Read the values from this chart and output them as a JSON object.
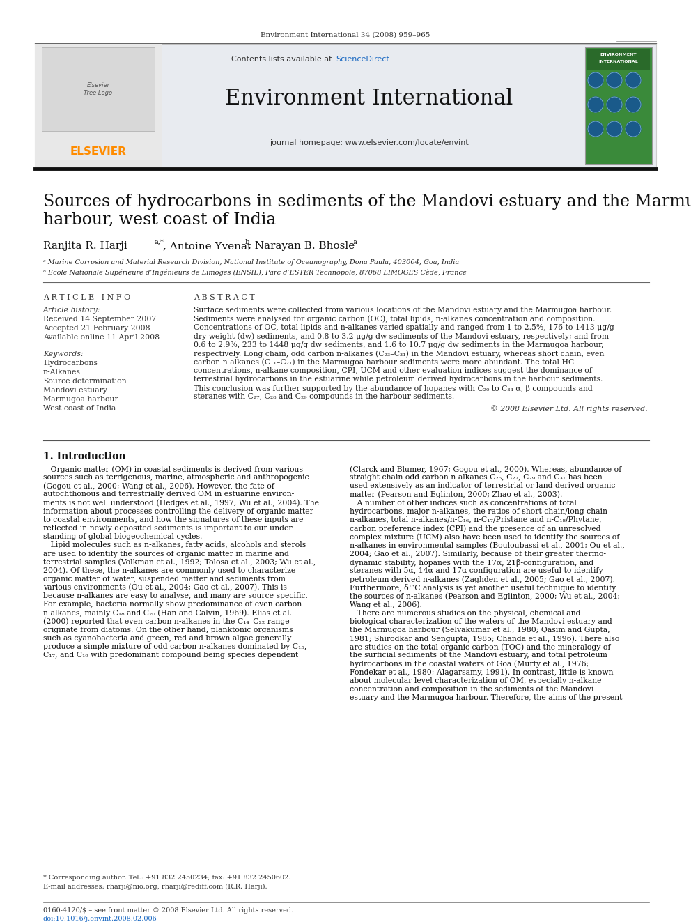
{
  "journal_ref": "Environment International 34 (2008) 959–965",
  "header_contents": "Contents lists available at ScienceDirect",
  "journal_name": "Environment International",
  "journal_homepage": "journal homepage: www.elsevier.com/locate/envint",
  "title_line1": "Sources of hydrocarbons in sediments of the Mandovi estuary and the Marmugoa",
  "title_line2": "harbour, west coast of India",
  "author_main": "Ranjita R. Harji",
  "author_sup1": "a,*",
  "author2": ", Antoine Yvenat",
  "author_sup2": " b",
  "author3": ", Narayan B. Bhosle",
  "author_sup3": " a",
  "affil_a": "ᵃ Marine Corrosion and Material Research Division, National Institute of Oceanography, Dona Paula, 403004, Goa, India",
  "affil_b": "ᵇ Ecole Nationale Supérieure d’Ingénieurs de Limoges (ENSIL), Parc d’ESTER Technopole, 87068 LIMOGES Cède, France",
  "article_info_title": "A R T I C L E   I N F O",
  "article_history": "Article history:",
  "received": "Received 14 September 2007",
  "accepted": "Accepted 21 February 2008",
  "available": "Available online 11 April 2008",
  "keywords_title": "Keywords:",
  "keywords": [
    "Hydrocarbons",
    "n-Alkanes",
    "Source-determination",
    "Mandovi estuary",
    "Marmugoa harbour",
    "West coast of India"
  ],
  "abstract_title": "A B S T R A C T",
  "abstract_lines": [
    "Surface sediments were collected from various locations of the Mandovi estuary and the Marmugoa harbour.",
    "Sediments were analysed for organic carbon (OC), total lipids, n-alkanes concentration and composition.",
    "Concentrations of OC, total lipids and n-alkanes varied spatially and ranged from 1 to 2.5%, 176 to 1413 μg/g",
    "dry weight (dw) sediments, and 0.8 to 3.2 μg/g dw sediments of the Mandovi estuary, respectively; and from",
    "0.6 to 2.9%, 233 to 1448 μg/g dw sediments, and 1.6 to 10.7 μg/g dw sediments in the Marmugoa harbour,",
    "respectively. Long chain, odd carbon n-alkanes (C₂₃–C₃₁) in the Mandovi estuary, whereas short chain, even",
    "carbon n-alkanes (C₁₁–C₂₁) in the Marmugoa harbour sediments were more abundant. The total HC",
    "concentrations, n-alkane composition, CPI, UCM and other evaluation indices suggest the dominance of",
    "terrestrial hydrocarbons in the estuarine while petroleum derived hydrocarbons in the harbour sediments.",
    "This conclusion was further supported by the abundance of hopanes with C₂₀ to C₃₄ α, β compounds and",
    "steranes with C₂₇, C₂₈ and C₂₉ compounds in the harbour sediments."
  ],
  "copyright": "© 2008 Elsevier Ltd. All rights reserved.",
  "intro_title": "1. Introduction",
  "intro_col1_lines": [
    "   Organic matter (OM) in coastal sediments is derived from various",
    "sources such as terrigenous, marine, atmospheric and anthropogenic",
    "(Gogou et al., 2000; Wang et al., 2006). However, the fate of",
    "autochthonous and terrestrially derived OM in estuarine environ-",
    "ments is not well understood (Hedges et al., 1997; Wu et al., 2004). The",
    "information about processes controlling the delivery of organic matter",
    "to coastal environments, and how the signatures of these inputs are",
    "reflected in newly deposited sediments is important to our under-",
    "standing of global biogeochemical cycles.",
    "   Lipid molecules such as n-alkanes, fatty acids, alcohols and sterols",
    "are used to identify the sources of organic matter in marine and",
    "terrestrial samples (Volkman et al., 1992; Tolosa et al., 2003; Wu et al.,",
    "2004). Of these, the n-alkanes are commonly used to characterize",
    "organic matter of water, suspended matter and sediments from",
    "various environments (Ou et al., 2004; Gao et al., 2007). This is",
    "because n-alkanes are easy to analyse, and many are source specific.",
    "For example, bacteria normally show predominance of even carbon",
    "n-alkanes, mainly C₁₈ and C₂₀ (Han and Calvin, 1969). Elias et al.",
    "(2000) reported that even carbon n-alkanes in the C₁₄–C₂₂ range",
    "originate from diatoms. On the other hand, planktonic organisms",
    "such as cyanobacteria and green, red and brown algae generally",
    "produce a simple mixture of odd carbon n-alkanes dominated by C₁₅,",
    "C₁₇, and C₁₉ with predominant compound being species dependent"
  ],
  "intro_col2_lines": [
    "(Clarck and Blumer, 1967; Gogou et al., 2000). Whereas, abundance of",
    "straight chain odd carbon n-alkanes C₂₅, C₂₇, C₂₉ and C₃₁ has been",
    "used extensively as an indicator of terrestrial or land derived organic",
    "matter (Pearson and Eglinton, 2000; Zhao et al., 2003).",
    "   A number of other indices such as concentrations of total",
    "hydrocarbons, major n-alkanes, the ratios of short chain/long chain",
    "n-alkanes, total n-alkanes/n-C₁₆, n-C₁₇/Pristane and n-C₁₈/Phytane,",
    "carbon preference index (CPI) and the presence of an unresolved",
    "complex mixture (UCM) also have been used to identify the sources of",
    "n-alkanes in environmental samples (Bouloubassi et al., 2001; Ou et al.,",
    "2004; Gao et al., 2007). Similarly, because of their greater thermo-",
    "dynamic stability, hopanes with the 17α, 21β-configuration, and",
    "steranes with 5α, 14α and 17α configuration are useful to identify",
    "petroleum derived n-alkanes (Zaghden et al., 2005; Gao et al., 2007).",
    "Furthermore, δ¹³C analysis is yet another useful technique to identify",
    "the sources of n-alkanes (Pearson and Eglinton, 2000; Wu et al., 2004;",
    "Wang et al., 2006).",
    "   There are numerous studies on the physical, chemical and",
    "biological characterization of the waters of the Mandovi estuary and",
    "the Marmugoa harbour (Selvakumar et al., 1980; Qasim and Gupta,",
    "1981; Shirodkar and Sengupta, 1985; Chanda et al., 1996). There also",
    "are studies on the total organic carbon (TOC) and the mineralogy of",
    "the surficial sediments of the Mandovi estuary, and total petroleum",
    "hydrocarbons in the coastal waters of Goa (Murty et al., 1976;",
    "Fondekar et al., 1980; Alagarsamy, 1991). In contrast, little is known",
    "about molecular level characterization of OM, especially n-alkane",
    "concentration and composition in the sediments of the Mandovi",
    "estuary and the Marmugoa harbour. Therefore, the aims of the present"
  ],
  "footnote1": "* Corresponding author. Tel.: +91 832 2450234; fax: +91 832 2450602.",
  "footnote2": "E-mail addresses: rharji@nio.org, rharji@rediff.com (R.R. Harji).",
  "footer1": "0160-4120/$ – see front matter © 2008 Elsevier Ltd. All rights reserved.",
  "footer2": "doi:10.1016/j.envint.2008.02.006",
  "elsevier_color": "#FF8C00",
  "sciencedirect_color": "#1565C0",
  "header_bg": "#E8EBF0",
  "link_color": "#1565C0"
}
